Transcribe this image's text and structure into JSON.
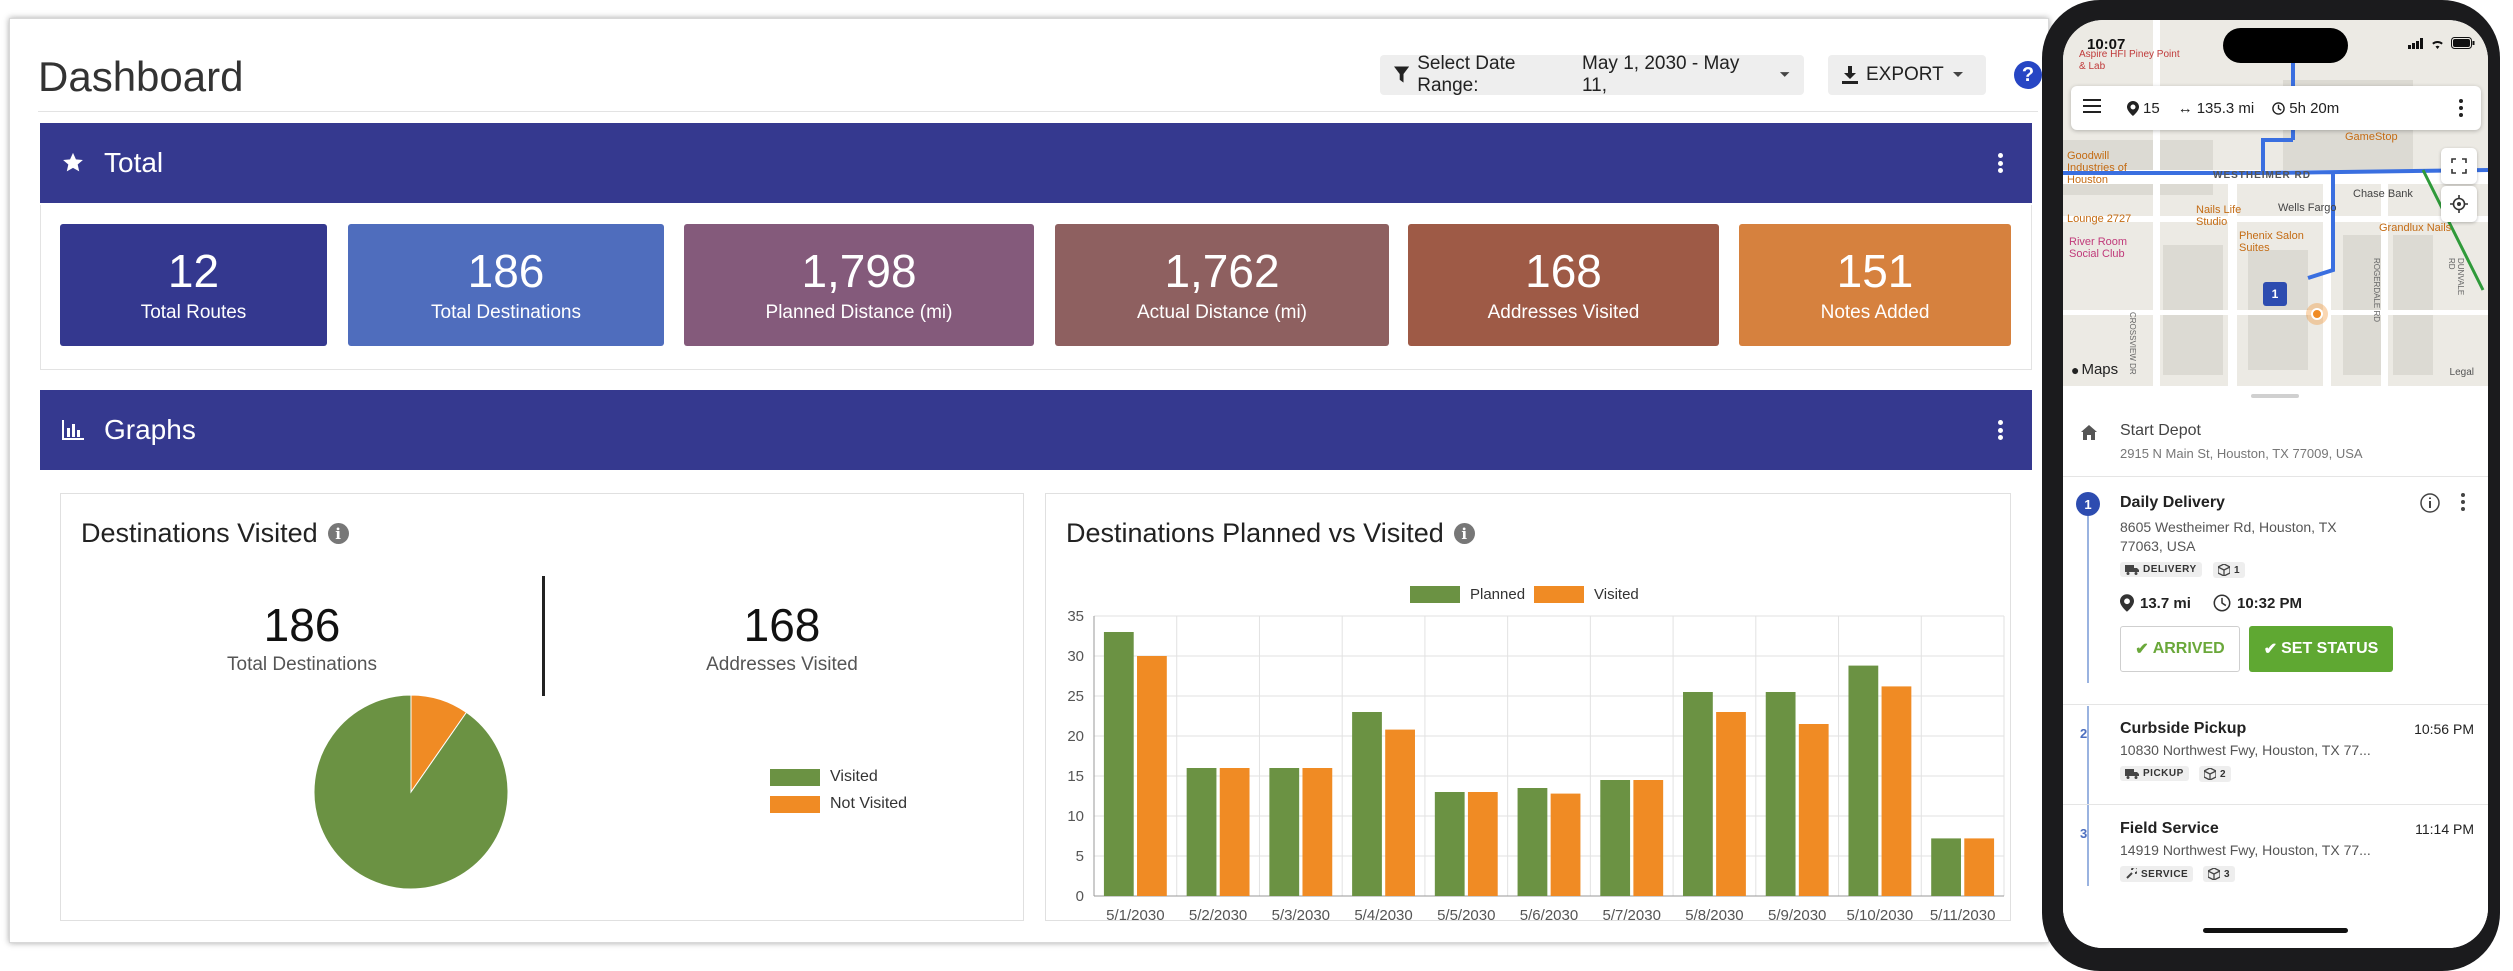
{
  "dashboard": {
    "title": "Dashboard",
    "date_range_label": "Select Date Range:",
    "date_range_value": "May 1, 2030 - May 11,",
    "export_label": "EXPORT",
    "help": "?"
  },
  "total_panel": {
    "title": "Total",
    "cards": [
      {
        "value": "12",
        "label": "Total Routes",
        "color": "#34388f"
      },
      {
        "value": "186",
        "label": "Total Destinations",
        "color": "#4f6dbd"
      },
      {
        "value": "1,798",
        "label": "Planned Distance (mi)",
        "color": "#845a7b"
      },
      {
        "value": "1,762",
        "label": "Actual Distance (mi)",
        "color": "#8e6060"
      },
      {
        "value": "168",
        "label": "Addresses Visited",
        "color": "#9e5a46"
      },
      {
        "value": "151",
        "label": "Notes Added",
        "color": "#d6813e"
      }
    ]
  },
  "graphs_panel": {
    "title": "Graphs",
    "visited": {
      "title": "Destinations Visited",
      "total_value": "186",
      "total_label": "Total Destinations",
      "visited_value": "168",
      "visited_label": "Addresses Visited",
      "legend": [
        "Visited",
        "Not Visited"
      ]
    },
    "planned_vs_visited": {
      "title": "Destinations Planned vs Visited",
      "legend": [
        "Planned",
        "Visited"
      ]
    }
  },
  "colors": {
    "green": "#6b9243",
    "orange": "#f08b24",
    "navy": "#35398f"
  },
  "chart_data": [
    {
      "type": "pie",
      "title": "Destinations Visited",
      "labels": [
        "Visited",
        "Not Visited"
      ],
      "values": [
        168,
        18
      ],
      "colors": [
        "#6b9243",
        "#f08b24"
      ]
    },
    {
      "type": "bar",
      "title": "Destinations Planned vs Visited",
      "categories": [
        "5/1/2030",
        "5/2/2030",
        "5/3/2030",
        "5/4/2030",
        "5/5/2030",
        "5/6/2030",
        "5/7/2030",
        "5/8/2030",
        "5/9/2030",
        "5/10/2030",
        "5/11/2030"
      ],
      "series": [
        {
          "name": "Planned",
          "color": "#6b9243",
          "values": [
            33,
            16,
            16,
            23,
            13,
            13.5,
            14.5,
            25.5,
            25.5,
            28.8,
            7.2
          ]
        },
        {
          "name": "Visited",
          "color": "#f08b24",
          "values": [
            30,
            16,
            16,
            20.8,
            13,
            12.8,
            14.5,
            23,
            21.5,
            26.2,
            7.2
          ]
        }
      ],
      "ylim": [
        0,
        35
      ],
      "yticks": [
        "0",
        "5",
        "10",
        "15",
        "20",
        "25",
        "30",
        "35"
      ]
    }
  ],
  "phone": {
    "status_time": "10:07",
    "toolbar": {
      "stops": "15",
      "distance": "135.3 mi",
      "duration": "5h 20m"
    },
    "map_labels": {
      "aspire": "Aspire HFI Piney Point & Lab",
      "gamestop": "GameStop",
      "goodwill": "Goodwill Industries of Houston",
      "westheimer": "WESTHEIMER RD",
      "chase": "Chase Bank",
      "wells": "Wells Fargo",
      "nails": "Nails Life Studio",
      "lounge": "Lounge 2727",
      "phenix": "Phenix Salon Suites",
      "grandlux": "Grandlux Nails",
      "riverroom": "River Room Social Club",
      "crossview": "CROSSVIEW DR",
      "rogerdale": "ROGERDALE RD",
      "dunvale": "DUNVALE RD",
      "maps": "Maps",
      "legal": "Legal",
      "pin": "1"
    },
    "start": {
      "name": "Start Depot",
      "address": "2915 N Main St, Houston, TX 77009, USA"
    },
    "stops": [
      {
        "num": "1",
        "name": "Daily Delivery",
        "address1": "8605 Westheimer Rd, Houston, TX",
        "address2": "77063, USA",
        "tag": "DELIVERY",
        "count": "1",
        "distance": "13.7 mi",
        "time": "10:32 PM",
        "arrived": "ARRIVED",
        "set_status": "SET STATUS"
      },
      {
        "num": "2",
        "name": "Curbside Pickup",
        "address1": "10830 Northwest Fwy, Houston, TX 77...",
        "tag": "PICKUP",
        "count": "2",
        "time": "10:56 PM"
      },
      {
        "num": "3",
        "name": "Field Service",
        "address1": "14919 Northwest Fwy, Houston, TX 77...",
        "tag": "SERVICE",
        "count": "3",
        "time": "11:14 PM"
      }
    ]
  }
}
